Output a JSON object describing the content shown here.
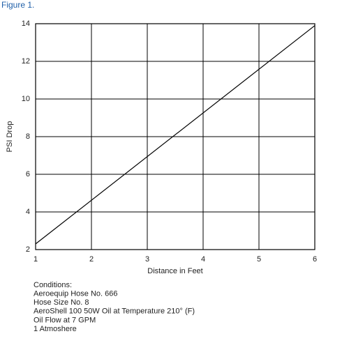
{
  "chart_data": {
    "type": "line",
    "figure_label": "Figure 1.",
    "x_label": "Distance in Feet",
    "y_label": "PSI Drop",
    "x": [
      1,
      6
    ],
    "series": [
      {
        "color": "#000000",
        "values": [
          2.3,
          13.9
        ]
      }
    ],
    "xlim": [
      1,
      6
    ],
    "xticks": [
      1,
      2,
      3,
      4,
      5,
      6
    ],
    "ylim": [
      2,
      14
    ],
    "yticks": [
      2,
      4,
      6,
      8,
      10,
      12,
      14
    ],
    "grid": true,
    "notes": [
      "Conditions:",
      "Aeroequip Hose No. 666",
      "Hose Size No. 8",
      "AeroShell 100 50W Oil at Temperature 210° (F)",
      "Oil Flow at 7 GPM",
      "1 Atmoshere"
    ]
  }
}
